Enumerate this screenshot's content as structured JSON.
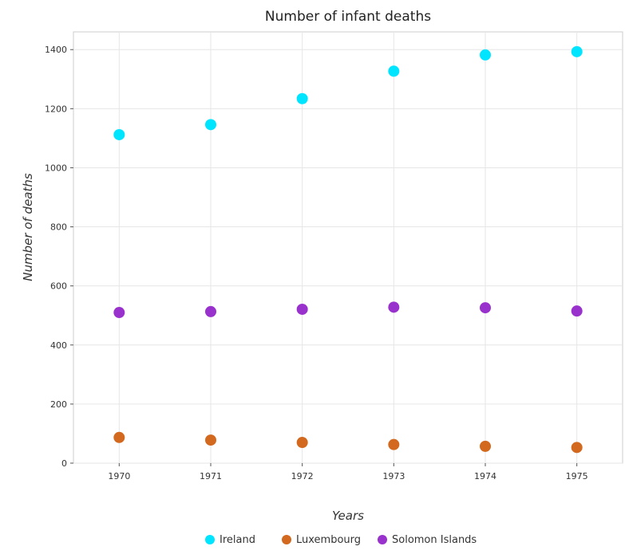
{
  "chart_data": {
    "type": "scatter",
    "title": "Number of infant deaths",
    "xlabel": "Years",
    "ylabel": "Number of deaths",
    "categories": [
      "1970",
      "1971",
      "1972",
      "1973",
      "1974",
      "1975"
    ],
    "ylim": [
      0,
      1460
    ],
    "yticks": [
      0,
      200,
      400,
      600,
      800,
      1000,
      1200,
      1400
    ],
    "grid": true,
    "legend_position": "bottom",
    "series": [
      {
        "name": "Ireland",
        "color": "#00e5ff",
        "values": [
          1112,
          1146,
          1234,
          1327,
          1382,
          1393
        ]
      },
      {
        "name": "Luxembourg",
        "color": "#d2691e",
        "values": [
          87,
          78,
          70,
          63,
          57,
          53
        ]
      },
      {
        "name": "Solomon Islands",
        "color": "#9932cc",
        "values": [
          510,
          513,
          521,
          528,
          526,
          515
        ]
      }
    ]
  }
}
